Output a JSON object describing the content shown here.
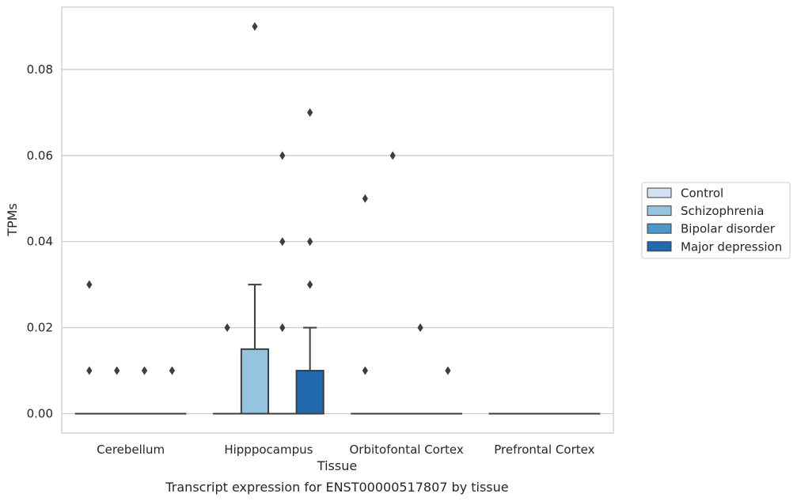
{
  "chart_data": {
    "type": "box",
    "title": "Transcript expression for ENST00000517807 by tissue",
    "xlabel": "Tissue",
    "ylabel": "TPMs",
    "categories": [
      "Cerebellum",
      "Hipppocampus",
      "Orbitofontal Cortex",
      "Prefrontal Cortex"
    ],
    "ylim": [
      -0.0045,
      0.0945
    ],
    "yticks": [
      0.0,
      0.02,
      0.04,
      0.06,
      0.08
    ],
    "ytick_labels": [
      "0.00",
      "0.02",
      "0.04",
      "0.06",
      "0.08"
    ],
    "grid": "horizontal",
    "legend_position": "right",
    "series": [
      {
        "name": "Control",
        "color": "#d0e1f2",
        "boxes": [
          {
            "q1": 0,
            "median": 0,
            "q3": 0,
            "whisker_low": 0,
            "whisker_high": 0,
            "outliers": [
              0.03,
              0.01
            ]
          },
          {
            "q1": 0,
            "median": 0,
            "q3": 0,
            "whisker_low": 0,
            "whisker_high": 0,
            "outliers": [
              0.02
            ]
          },
          {
            "q1": 0,
            "median": 0,
            "q3": 0,
            "whisker_low": 0,
            "whisker_high": 0,
            "outliers": [
              0.05,
              0.01
            ]
          },
          {
            "q1": 0,
            "median": 0,
            "q3": 0,
            "whisker_low": 0,
            "whisker_high": 0,
            "outliers": []
          }
        ]
      },
      {
        "name": "Schizophrenia",
        "color": "#94c4df",
        "boxes": [
          {
            "q1": 0,
            "median": 0,
            "q3": 0,
            "whisker_low": 0,
            "whisker_high": 0,
            "outliers": [
              0.01
            ]
          },
          {
            "q1": 0,
            "median": 0,
            "q3": 0.015,
            "whisker_low": 0,
            "whisker_high": 0.03,
            "outliers": [
              0.09
            ]
          },
          {
            "q1": 0,
            "median": 0,
            "q3": 0,
            "whisker_low": 0,
            "whisker_high": 0,
            "outliers": [
              0.06
            ]
          },
          {
            "q1": 0,
            "median": 0,
            "q3": 0,
            "whisker_low": 0,
            "whisker_high": 0,
            "outliers": []
          }
        ]
      },
      {
        "name": "Bipolar disorder",
        "color": "#4a98c9",
        "boxes": [
          {
            "q1": 0,
            "median": 0,
            "q3": 0,
            "whisker_low": 0,
            "whisker_high": 0,
            "outliers": [
              0.01
            ]
          },
          {
            "q1": 0,
            "median": 0,
            "q3": 0,
            "whisker_low": 0,
            "whisker_high": 0,
            "outliers": [
              0.06,
              0.04,
              0.02
            ]
          },
          {
            "q1": 0,
            "median": 0,
            "q3": 0,
            "whisker_low": 0,
            "whisker_high": 0,
            "outliers": [
              0.02
            ]
          },
          {
            "q1": 0,
            "median": 0,
            "q3": 0,
            "whisker_low": 0,
            "whisker_high": 0,
            "outliers": []
          }
        ]
      },
      {
        "name": "Major depression",
        "color": "#2268ad",
        "boxes": [
          {
            "q1": 0,
            "median": 0,
            "q3": 0,
            "whisker_low": 0,
            "whisker_high": 0,
            "outliers": [
              0.01
            ]
          },
          {
            "q1": 0,
            "median": 0,
            "q3": 0.01,
            "whisker_low": 0,
            "whisker_high": 0.02,
            "outliers": [
              0.07,
              0.04,
              0.03
            ]
          },
          {
            "q1": 0,
            "median": 0,
            "q3": 0,
            "whisker_low": 0,
            "whisker_high": 0,
            "outliers": [
              0.01
            ]
          },
          {
            "q1": 0,
            "median": 0,
            "q3": 0,
            "whisker_low": 0,
            "whisker_high": 0,
            "outliers": []
          }
        ]
      }
    ]
  }
}
